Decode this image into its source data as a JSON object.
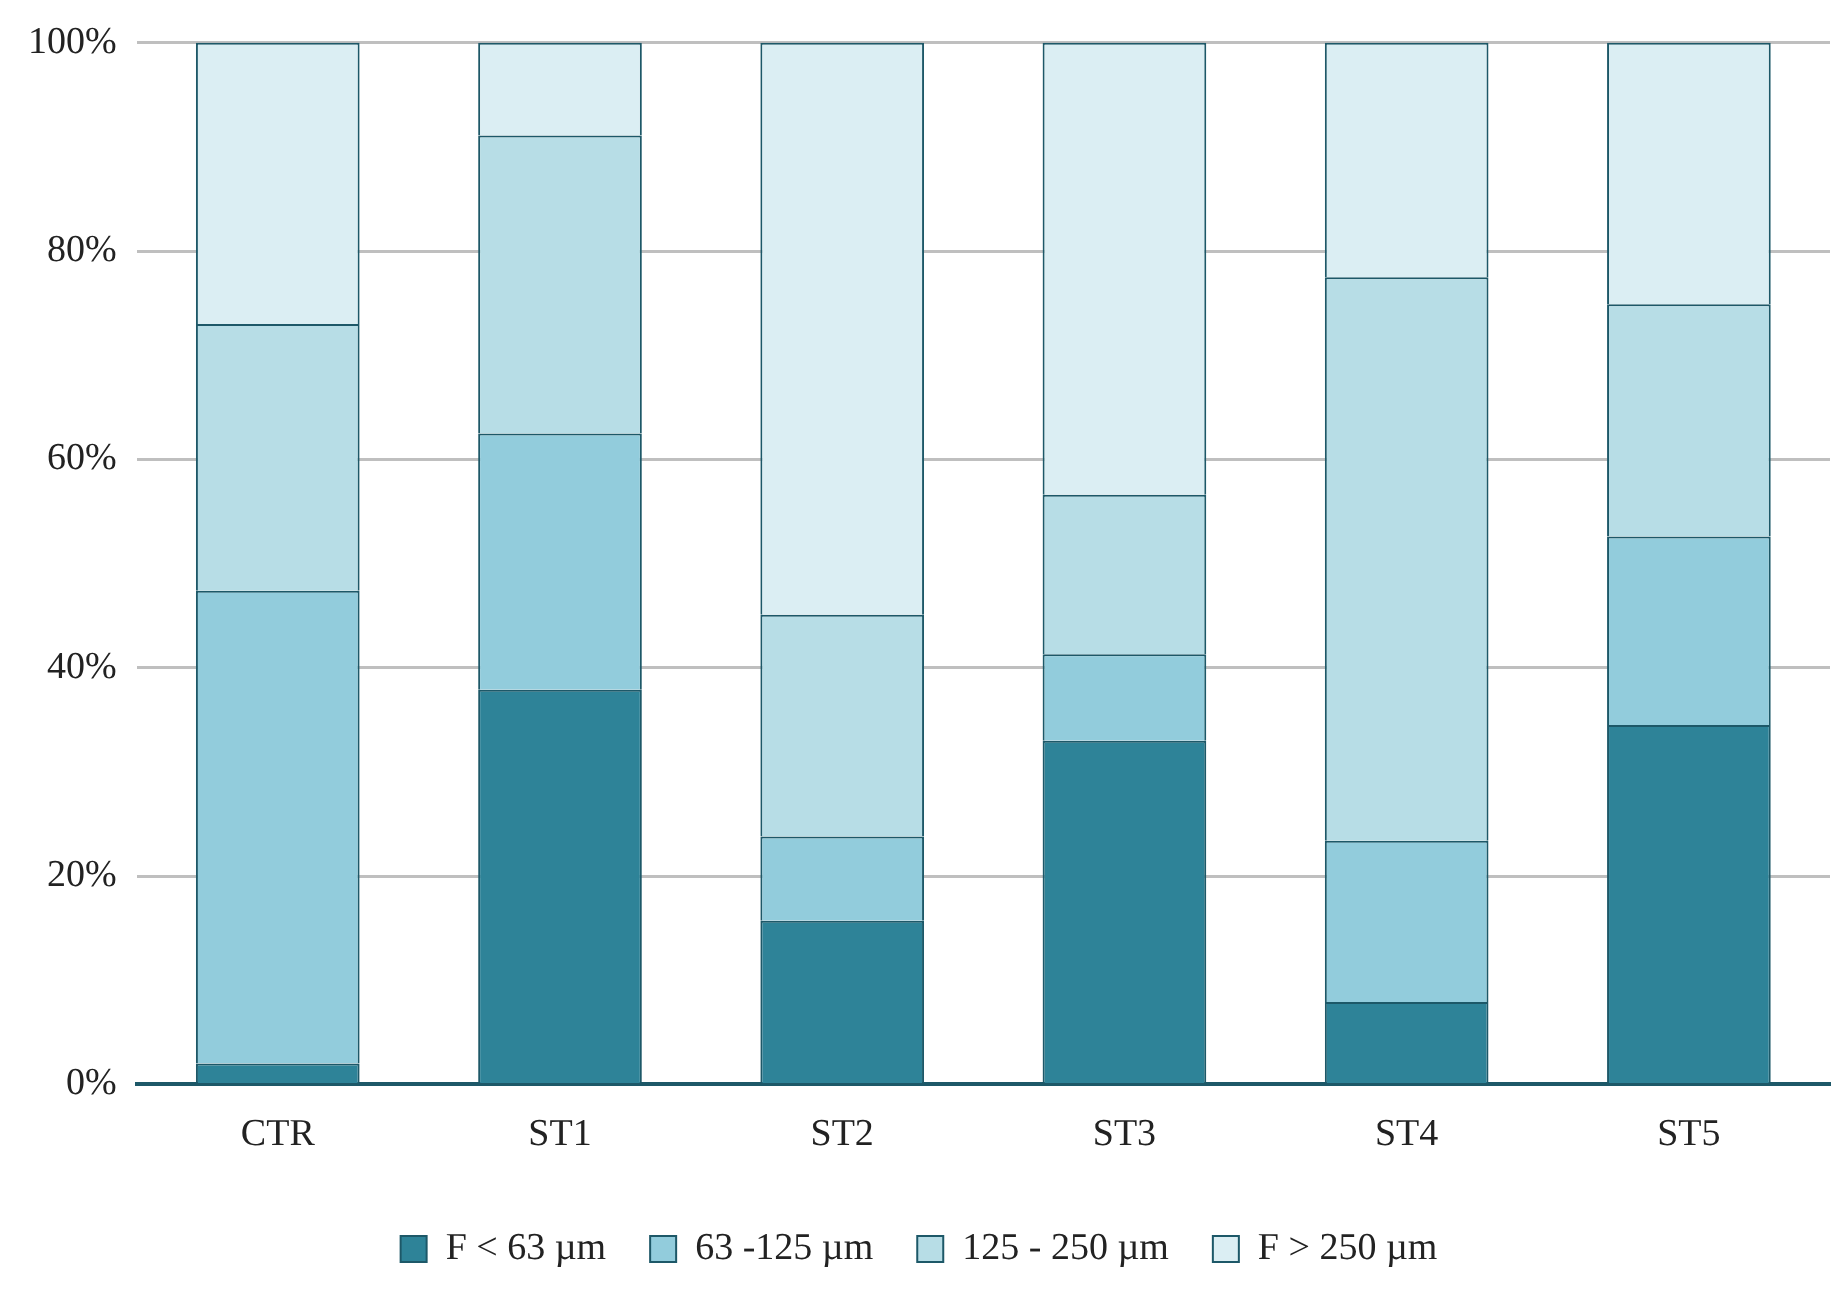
{
  "chart_data": {
    "type": "bar",
    "stacked": true,
    "categories": [
      "CTR",
      "ST1",
      "ST2",
      "ST3",
      "ST4",
      "ST5"
    ],
    "series": [
      {
        "name": "F < 63 µm",
        "color": "#2e8398",
        "values": [
          2,
          37.9,
          15.7,
          33,
          7.9,
          34.5
        ]
      },
      {
        "name": "63 -125 µm",
        "color": "#92ccdc",
        "values": [
          45.4,
          24.6,
          8.1,
          8.3,
          15.5,
          18.1
        ]
      },
      {
        "name": "125 - 250 µm",
        "color": "#b7dde6",
        "values": [
          25.6,
          28.6,
          21.3,
          15.3,
          54.1,
          22.3
        ]
      },
      {
        "name": "F > 250 µm",
        "color": "#dbeef3",
        "values": [
          27,
          8.9,
          54.9,
          43.4,
          22.5,
          25.1
        ]
      }
    ],
    "ylim": [
      0,
      100
    ],
    "yticks": [
      {
        "value": 0,
        "label": "0%"
      },
      {
        "value": 20,
        "label": "20%"
      },
      {
        "value": 40,
        "label": "40%"
      },
      {
        "value": 60,
        "label": "60%"
      },
      {
        "value": 80,
        "label": "80%"
      },
      {
        "value": 100,
        "label": "100%"
      }
    ],
    "grid": "y",
    "legend": "bottom"
  }
}
